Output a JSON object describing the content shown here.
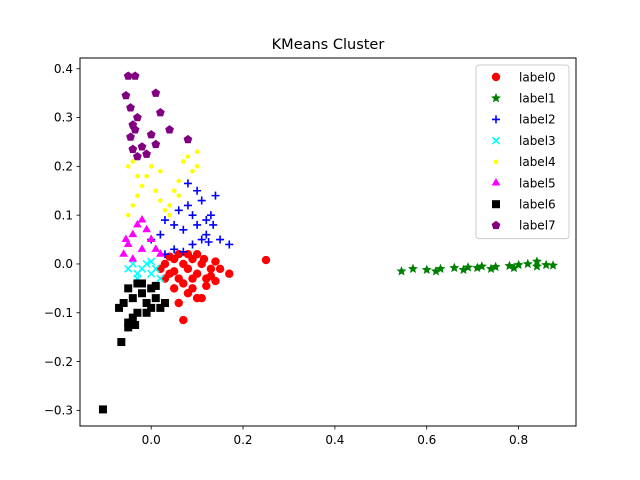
{
  "chart_data": {
    "type": "scatter",
    "title": "KMeans Cluster",
    "xlabel": "",
    "ylabel": "",
    "xlim": [
      -0.155,
      0.925
    ],
    "ylim": [
      -0.332,
      0.422
    ],
    "x_ticks": [
      0.0,
      0.2,
      0.4,
      0.6,
      0.8
    ],
    "x_tick_labels": [
      "0.0",
      "0.2",
      "0.4",
      "0.6",
      "0.8"
    ],
    "y_ticks": [
      -0.3,
      -0.2,
      -0.1,
      0.0,
      0.1,
      0.2,
      0.3,
      0.4
    ],
    "y_tick_labels": [
      "−0.3",
      "−0.2",
      "−0.1",
      "0.0",
      "0.1",
      "0.2",
      "0.3",
      "0.4"
    ],
    "grid": false,
    "legend_position": "top-right",
    "series": [
      {
        "name": "label0",
        "marker": "circle",
        "color": "#ff0000",
        "points": [
          [
            0.02,
            -0.01
          ],
          [
            0.03,
            0.0
          ],
          [
            0.04,
            -0.02
          ],
          [
            0.05,
            0.01
          ],
          [
            0.06,
            -0.03
          ],
          [
            0.07,
            0.0
          ],
          [
            0.08,
            -0.01
          ],
          [
            0.09,
            0.01
          ],
          [
            0.1,
            -0.02
          ],
          [
            0.11,
            0.0
          ],
          [
            0.12,
            -0.03
          ],
          [
            0.13,
            -0.01
          ],
          [
            0.14,
            0.005
          ],
          [
            0.15,
            -0.01
          ],
          [
            0.17,
            -0.02
          ],
          [
            0.05,
            -0.05
          ],
          [
            0.07,
            -0.04
          ],
          [
            0.09,
            -0.05
          ],
          [
            0.1,
            -0.07
          ],
          [
            0.11,
            -0.07
          ],
          [
            0.06,
            -0.08
          ],
          [
            0.08,
            -0.06
          ],
          [
            0.12,
            -0.045
          ],
          [
            0.13,
            -0.025
          ],
          [
            0.04,
            0.015
          ],
          [
            0.06,
            0.02
          ],
          [
            0.08,
            0.02
          ],
          [
            0.1,
            0.02
          ],
          [
            0.115,
            0.01
          ],
          [
            0.07,
            -0.115
          ],
          [
            0.25,
            0.008
          ],
          [
            0.03,
            -0.03
          ],
          [
            0.05,
            -0.015
          ],
          [
            0.09,
            -0.03
          ],
          [
            0.14,
            -0.035
          ]
        ]
      },
      {
        "name": "label1",
        "marker": "star",
        "color": "#008000",
        "points": [
          [
            0.545,
            -0.015
          ],
          [
            0.57,
            -0.01
          ],
          [
            0.6,
            -0.012
          ],
          [
            0.63,
            -0.01
          ],
          [
            0.66,
            -0.008
          ],
          [
            0.69,
            -0.007
          ],
          [
            0.72,
            -0.005
          ],
          [
            0.75,
            -0.006
          ],
          [
            0.78,
            -0.004
          ],
          [
            0.8,
            -0.002
          ],
          [
            0.82,
            0.0
          ],
          [
            0.84,
            -0.005
          ],
          [
            0.86,
            -0.002
          ],
          [
            0.875,
            -0.003
          ],
          [
            0.62,
            -0.015
          ],
          [
            0.68,
            -0.012
          ],
          [
            0.74,
            -0.01
          ],
          [
            0.79,
            -0.008
          ],
          [
            0.84,
            0.005
          ],
          [
            0.71,
            -0.008
          ]
        ]
      },
      {
        "name": "label2",
        "marker": "plus",
        "color": "#0000ff",
        "points": [
          [
            0.0,
            0.05
          ],
          [
            0.02,
            0.06
          ],
          [
            0.03,
            0.09
          ],
          [
            0.05,
            0.08
          ],
          [
            0.06,
            0.11
          ],
          [
            0.07,
            0.07
          ],
          [
            0.08,
            0.12
          ],
          [
            0.09,
            0.1
          ],
          [
            0.1,
            0.15
          ],
          [
            0.1,
            0.08
          ],
          [
            0.11,
            0.13
          ],
          [
            0.12,
            0.06
          ],
          [
            0.13,
            0.1
          ],
          [
            0.14,
            0.14
          ],
          [
            0.15,
            0.05
          ],
          [
            0.17,
            0.04
          ],
          [
            0.11,
            0.05
          ],
          [
            0.09,
            0.04
          ],
          [
            0.12,
            0.09
          ],
          [
            0.08,
            0.165
          ],
          [
            0.03,
            0.02
          ],
          [
            0.05,
            0.03
          ],
          [
            0.07,
            0.025
          ],
          [
            0.125,
            0.045
          ],
          [
            0.135,
            0.08
          ]
        ]
      },
      {
        "name": "label3",
        "marker": "x",
        "color": "#00ffff",
        "points": [
          [
            -0.05,
            -0.01
          ],
          [
            -0.04,
            0.0
          ],
          [
            -0.03,
            -0.02
          ],
          [
            -0.02,
            -0.01
          ],
          [
            -0.01,
            0.0
          ],
          [
            0.0,
            -0.02
          ],
          [
            0.01,
            -0.01
          ],
          [
            0.02,
            -0.03
          ],
          [
            -0.03,
            -0.03
          ],
          [
            0.0,
            0.005
          ]
        ]
      },
      {
        "name": "label4",
        "marker": "point",
        "color": "#ffff00",
        "points": [
          [
            -0.05,
            0.1
          ],
          [
            -0.04,
            0.12
          ],
          [
            -0.03,
            0.14
          ],
          [
            -0.02,
            0.16
          ],
          [
            -0.01,
            0.18
          ],
          [
            0.0,
            0.2
          ],
          [
            0.01,
            0.15
          ],
          [
            0.02,
            0.13
          ],
          [
            0.03,
            0.11
          ],
          [
            0.04,
            0.1
          ],
          [
            -0.05,
            0.2
          ],
          [
            -0.04,
            0.21
          ],
          [
            0.05,
            0.15
          ],
          [
            0.06,
            0.17
          ],
          [
            0.07,
            0.21
          ],
          [
            0.08,
            0.22
          ],
          [
            0.1,
            0.2
          ],
          [
            0.1,
            0.23
          ],
          [
            0.02,
            0.19
          ],
          [
            -0.03,
            0.18
          ],
          [
            0.04,
            0.12
          ],
          [
            0.06,
            0.14
          ],
          [
            0.09,
            0.19
          ]
        ]
      },
      {
        "name": "label5",
        "marker": "triangle",
        "color": "#ff00ff",
        "points": [
          [
            -0.06,
            0.02
          ],
          [
            -0.05,
            0.04
          ],
          [
            -0.04,
            0.06
          ],
          [
            -0.03,
            0.08
          ],
          [
            -0.02,
            0.09
          ],
          [
            -0.01,
            0.07
          ],
          [
            0.0,
            0.05
          ],
          [
            0.01,
            0.03
          ],
          [
            0.02,
            0.02
          ],
          [
            -0.04,
            0.01
          ],
          [
            -0.02,
            0.03
          ],
          [
            -0.055,
            0.05
          ]
        ]
      },
      {
        "name": "label6",
        "marker": "square",
        "color": "#000000",
        "points": [
          [
            -0.05,
            -0.05
          ],
          [
            -0.04,
            -0.07
          ],
          [
            -0.03,
            -0.04
          ],
          [
            -0.02,
            -0.06
          ],
          [
            -0.01,
            -0.08
          ],
          [
            0.0,
            -0.05
          ],
          [
            0.01,
            -0.07
          ],
          [
            0.02,
            -0.09
          ],
          [
            -0.03,
            -0.1
          ],
          [
            -0.05,
            -0.12
          ],
          [
            -0.07,
            -0.09
          ],
          [
            -0.05,
            -0.13
          ],
          [
            -0.01,
            -0.1
          ],
          [
            0.0,
            -0.09
          ],
          [
            -0.065,
            -0.16
          ],
          [
            -0.105,
            -0.298
          ],
          [
            -0.04,
            -0.11
          ],
          [
            0.03,
            -0.08
          ],
          [
            -0.02,
            -0.04
          ],
          [
            0.01,
            -0.045
          ],
          [
            -0.06,
            -0.08
          ],
          [
            -0.035,
            -0.125
          ]
        ]
      },
      {
        "name": "label7",
        "marker": "pentagon",
        "color": "#800080",
        "points": [
          [
            -0.05,
            0.385
          ],
          [
            -0.035,
            0.385
          ],
          [
            -0.055,
            0.345
          ],
          [
            0.01,
            0.35
          ],
          [
            -0.045,
            0.32
          ],
          [
            -0.03,
            0.3
          ],
          [
            -0.035,
            0.275
          ],
          [
            -0.045,
            0.26
          ],
          [
            -0.04,
            0.235
          ],
          [
            -0.02,
            0.24
          ],
          [
            0.0,
            0.265
          ],
          [
            0.02,
            0.31
          ],
          [
            0.04,
            0.275
          ],
          [
            0.08,
            0.255
          ],
          [
            -0.03,
            0.22
          ],
          [
            -0.01,
            0.225
          ],
          [
            0.01,
            0.245
          ],
          [
            -0.04,
            0.285
          ]
        ]
      }
    ]
  }
}
